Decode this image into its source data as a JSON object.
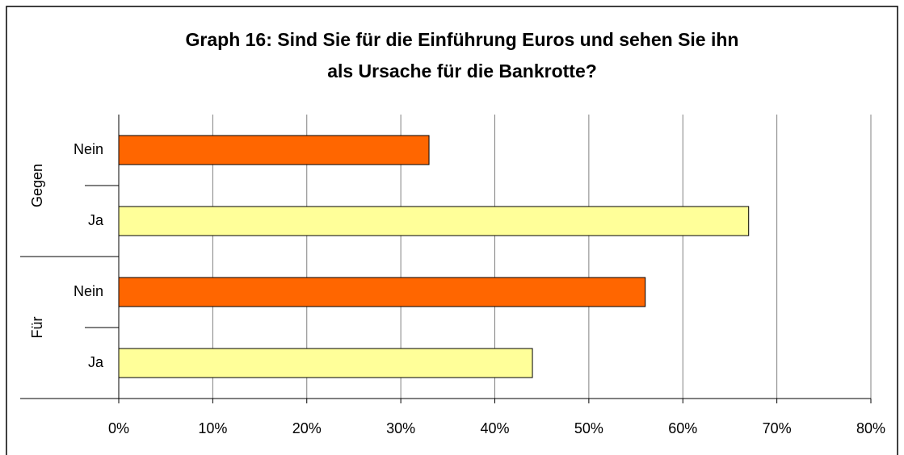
{
  "chart_data": {
    "type": "grouped-hbar",
    "title": [
      "Graph 16: Sind Sie für die Einführung Euros und sehen Sie ihn",
      "als Ursache für die Bankrotte?"
    ],
    "groups": [
      {
        "name": "Gegen",
        "categories": [
          "Nein",
          "Ja"
        ],
        "values": [
          33,
          67
        ]
      },
      {
        "name": "Für",
        "categories": [
          "Nein",
          "Ja"
        ],
        "values": [
          56,
          44
        ]
      }
    ],
    "colors": {
      "Nein": "#ff6600",
      "Ja": "#ffff99"
    },
    "xlim": [
      0,
      80
    ],
    "xticks": [
      {
        "value": 0,
        "label": "0%"
      },
      {
        "value": 10,
        "label": "10%"
      },
      {
        "value": 20,
        "label": "20%"
      },
      {
        "value": 30,
        "label": "30%"
      },
      {
        "value": 40,
        "label": "40%"
      },
      {
        "value": 50,
        "label": "50%"
      },
      {
        "value": 60,
        "label": "60%"
      },
      {
        "value": 70,
        "label": "70%"
      },
      {
        "value": 80,
        "label": "80%"
      }
    ],
    "grid": true
  }
}
